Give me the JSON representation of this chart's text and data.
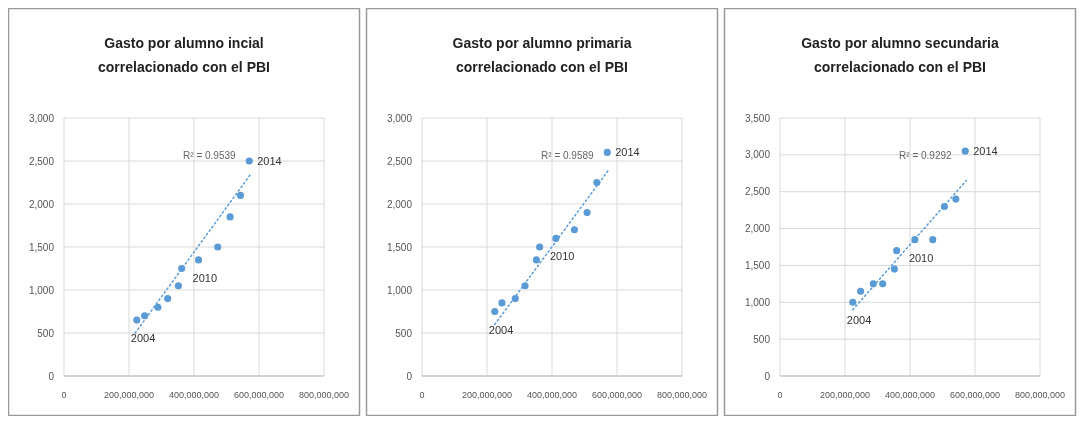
{
  "chart_data": [
    {
      "type": "scatter",
      "title": "Gasto por alumno incial correlacionado con el PBI",
      "xlim": [
        0,
        800000000
      ],
      "xticks": [
        {
          "value": 0,
          "label": "0"
        },
        {
          "value": 200000000,
          "label": "200,000,000"
        },
        {
          "value": 400000000,
          "label": "400,000,000"
        },
        {
          "value": 600000000,
          "label": "600,000,000"
        },
        {
          "value": 800000000,
          "label": "800,000,000"
        }
      ],
      "ylim": [
        0,
        3000
      ],
      "yticks": [
        {
          "value": 0,
          "label": "0"
        },
        {
          "value": 500,
          "label": "500"
        },
        {
          "value": 1000,
          "label": "1,000"
        },
        {
          "value": 1500,
          "label": "1,500"
        },
        {
          "value": 2000,
          "label": "2,000"
        },
        {
          "value": 2500,
          "label": "2,500"
        },
        {
          "value": 3000,
          "label": "3,000"
        }
      ],
      "grid": true,
      "series": [
        {
          "color": "#5b9bd5",
          "marker": "circle",
          "x": [
            224000000,
            248000000,
            289000000,
            319000000,
            352000000,
            362000000,
            414000000,
            473000000,
            511000000,
            543000000,
            570000000
          ],
          "values": [
            650,
            700,
            800,
            900,
            1050,
            1250,
            1350,
            1500,
            1850,
            2100,
            2500
          ]
        },
        {
          "type": "line",
          "color": "#5b9bd5",
          "line_style": "dotted",
          "x": [
            219000000,
            575000000
          ],
          "values": [
            500,
            2350
          ]
        }
      ],
      "annotations": [
        {
          "text": "2004",
          "x": 224000000,
          "y": 650
        },
        {
          "text": "2010",
          "x": 414000000,
          "y": 1350
        },
        {
          "text": "2014",
          "x": 570000000,
          "y": 2500
        },
        "R² = 0.9539"
      ]
    },
    {
      "type": "scatter",
      "title": "Gasto por alumno primaria correlacionado con el PBI",
      "xlim": [
        0,
        800000000
      ],
      "xticks": [
        {
          "value": 0,
          "label": "0"
        },
        {
          "value": 200000000,
          "label": "200,000,000"
        },
        {
          "value": 400000000,
          "label": "400,000,000"
        },
        {
          "value": 600000000,
          "label": "600,000,000"
        },
        {
          "value": 800000000,
          "label": "800,000,000"
        }
      ],
      "ylim": [
        0,
        3000
      ],
      "yticks": [
        {
          "value": 0,
          "label": "0"
        },
        {
          "value": 500,
          "label": "500"
        },
        {
          "value": 1000,
          "label": "1,000"
        },
        {
          "value": 1500,
          "label": "1,500"
        },
        {
          "value": 2000,
          "label": "2,000"
        },
        {
          "value": 2500,
          "label": "2,500"
        },
        {
          "value": 3000,
          "label": "3,000"
        }
      ],
      "grid": true,
      "series": [
        {
          "color": "#5b9bd5",
          "marker": "circle",
          "x": [
            224000000,
            246000000,
            287000000,
            317000000,
            352000000,
            362000000,
            412000000,
            469000000,
            508000000,
            538000000,
            570000000
          ],
          "values": [
            750,
            850,
            900,
            1050,
            1350,
            1500,
            1600,
            1700,
            1900,
            2250,
            2600
          ]
        },
        {
          "type": "line",
          "color": "#5b9bd5",
          "line_style": "dotted",
          "x": [
            224000000,
            575000000
          ],
          "values": [
            600,
            2400
          ]
        }
      ],
      "annotations": [
        {
          "text": "2004",
          "x": 224000000,
          "y": 750
        },
        {
          "text": "2010",
          "x": 412000000,
          "y": 1600
        },
        {
          "text": "2014",
          "x": 570000000,
          "y": 2600
        },
        "R² = 0.9589"
      ]
    },
    {
      "type": "scatter",
      "title": "Gasto por alumno secundaria correlacionado con el PBI",
      "xlim": [
        0,
        800000000
      ],
      "xticks": [
        {
          "value": 0,
          "label": "0"
        },
        {
          "value": 200000000,
          "label": "200,000,000"
        },
        {
          "value": 400000000,
          "label": "400,000,000"
        },
        {
          "value": 600000000,
          "label": "600,000,000"
        },
        {
          "value": 800000000,
          "label": "800,000,000"
        }
      ],
      "ylim": [
        0,
        3500
      ],
      "yticks": [
        {
          "value": 0,
          "label": "0"
        },
        {
          "value": 500,
          "label": "500"
        },
        {
          "value": 1000,
          "label": "1,000"
        },
        {
          "value": 1500,
          "label": "1,500"
        },
        {
          "value": 2000,
          "label": "2,000"
        },
        {
          "value": 2500,
          "label": "2,500"
        },
        {
          "value": 3000,
          "label": "3,000"
        },
        {
          "value": 3500,
          "label": "3,500"
        }
      ],
      "grid": true,
      "series": [
        {
          "color": "#5b9bd5",
          "marker": "circle",
          "x": [
            224000000,
            248000000,
            287000000,
            316000000,
            352000000,
            359000000,
            415000000,
            470000000,
            506000000,
            541000000,
            570000000
          ],
          "values": [
            1000,
            1150,
            1250,
            1250,
            1450,
            1700,
            1850,
            1850,
            2300,
            2400,
            3050
          ]
        },
        {
          "type": "line",
          "color": "#5b9bd5",
          "line_style": "dotted",
          "x": [
            224000000,
            573000000
          ],
          "values": [
            900,
            2650
          ]
        }
      ],
      "annotations": [
        {
          "text": "2004",
          "x": 224000000,
          "y": 1000
        },
        {
          "text": "2010",
          "x": 415000000,
          "y": 1850
        },
        {
          "text": "2014",
          "x": 570000000,
          "y": 3050
        },
        "R² = 0.9292"
      ]
    }
  ]
}
